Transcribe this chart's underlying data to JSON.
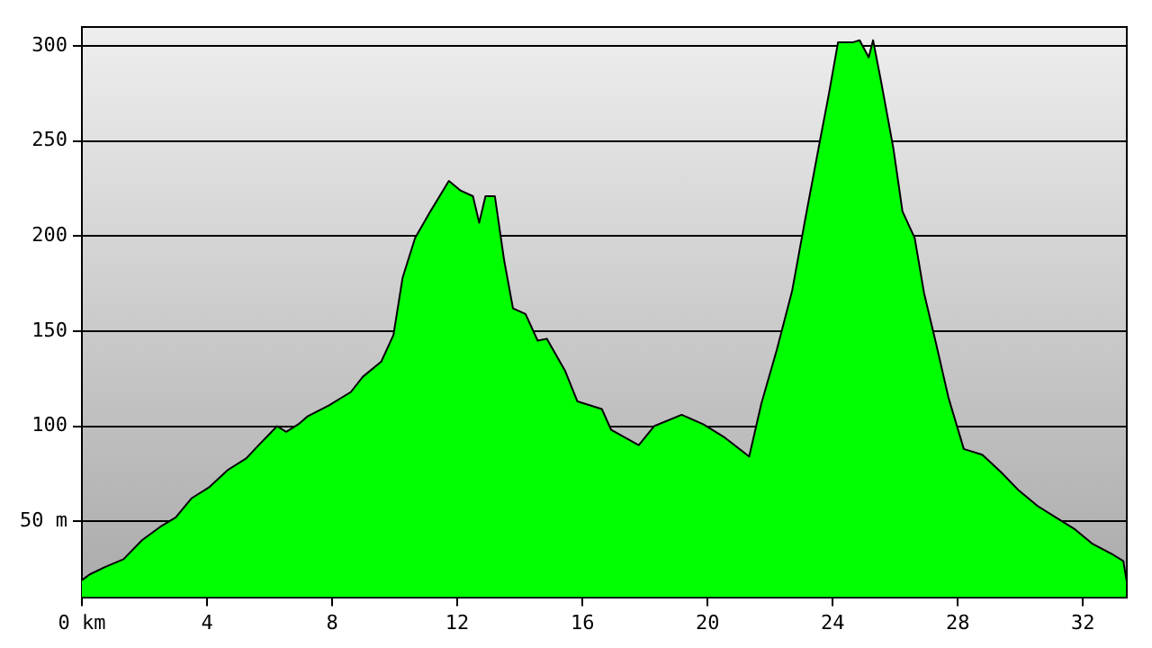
{
  "chart_data": {
    "type": "area",
    "xlim": [
      0,
      33.4
    ],
    "ylim": [
      10,
      310
    ],
    "xticks": [
      {
        "value": 0,
        "label": "0 km"
      },
      4,
      8,
      12,
      16,
      20,
      24,
      28,
      32
    ],
    "yticks": [
      {
        "value": 50,
        "label": "50 m"
      },
      100,
      150,
      200,
      250,
      300
    ],
    "grid": "y",
    "marker": "none",
    "line_style": "solid",
    "series": [
      {
        "color": "#00ff00",
        "x": [
          0,
          0.25,
          0.75,
          1.33,
          1.92,
          2.5,
          3.0,
          3.5,
          4.08,
          4.67,
          5.25,
          5.65,
          6.24,
          6.53,
          6.92,
          7.2,
          7.9,
          8.6,
          8.98,
          9.57,
          9.96,
          10.25,
          10.65,
          11.14,
          11.73,
          12.1,
          12.5,
          12.7,
          12.9,
          13.2,
          13.5,
          13.78,
          14.18,
          14.57,
          14.86,
          15.45,
          15.84,
          16.62,
          16.92,
          17.8,
          18.29,
          19.17,
          19.86,
          20.55,
          21.33,
          21.72,
          22.21,
          22.7,
          23.1,
          23.59,
          23.88,
          24.17,
          24.66,
          24.86,
          25.15,
          25.29,
          25.55,
          25.94,
          26.23,
          26.62,
          26.92,
          27.31,
          27.7,
          28.19,
          28.78,
          29.37,
          29.96,
          30.55,
          31.13,
          31.72,
          32.31,
          32.9,
          33.29,
          33.39
        ],
        "values": [
          19,
          22,
          26,
          30,
          40,
          47,
          52,
          62,
          68,
          77,
          83,
          90,
          100,
          97,
          101,
          105,
          111,
          118,
          126,
          134,
          148,
          178,
          199,
          213,
          229,
          224,
          221,
          207,
          221,
          221,
          187,
          162,
          159,
          145,
          146,
          129,
          113,
          109,
          98,
          90,
          100,
          106,
          101,
          94,
          84,
          112,
          140,
          171,
          207,
          250,
          275,
          302,
          302,
          303,
          294,
          303,
          281,
          246,
          213,
          199,
          170,
          143,
          115,
          88,
          85,
          76,
          66,
          58,
          52,
          46,
          38,
          33,
          29,
          19
        ]
      }
    ]
  }
}
